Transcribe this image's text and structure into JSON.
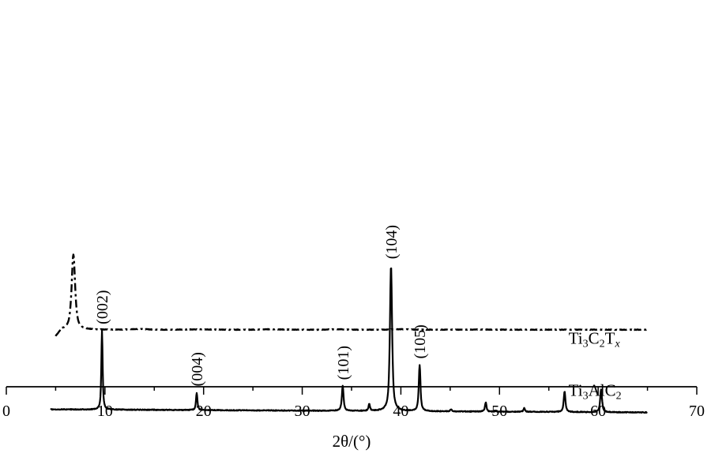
{
  "chart_data": {
    "type": "line",
    "title": "",
    "xlabel": "2θ/(°)",
    "ylabel": "",
    "xlim": [
      0,
      70
    ],
    "x_ticks": [
      0,
      10,
      20,
      30,
      40,
      50,
      60,
      70
    ],
    "grid": false,
    "y_axis_shown": false,
    "series": [
      {
        "name": "Ti3C2Tx",
        "label_parts": [
          {
            "t": "Ti",
            "s": "n"
          },
          {
            "t": "3",
            "s": "sub"
          },
          {
            "t": "C",
            "s": "n"
          },
          {
            "t": "2",
            "s": "sub"
          },
          {
            "t": "T",
            "s": "n"
          },
          {
            "t": "x",
            "s": "subi"
          }
        ],
        "line_style": "dashed",
        "label_at": [
          57,
          0.1
        ],
        "baseline": 0.78,
        "noise": 0.012,
        "broad_features": [
          {
            "center": 13.5,
            "height": 0.03,
            "width": 1.2
          },
          {
            "center": 19.5,
            "height": 0.015,
            "width": 2.0
          },
          {
            "center": 27.0,
            "height": 0.02,
            "width": 1.5
          },
          {
            "center": 33.5,
            "height": 0.02,
            "width": 1.0
          },
          {
            "center": 40.0,
            "height": 0.025,
            "width": 1.2
          },
          {
            "center": 48.0,
            "height": 0.01,
            "width": 2.0
          }
        ],
        "peaks": [
          {
            "x": 6.8,
            "height": 3.66,
            "width": 0.32,
            "label": ""
          }
        ],
        "x_range": [
          5.0,
          65.0
        ],
        "start_offset": -0.35
      },
      {
        "name": "Ti3AlC2",
        "label_parts": [
          {
            "t": "Ti",
            "s": "n"
          },
          {
            "t": "3",
            "s": "sub"
          },
          {
            "t": "AlC",
            "s": "n"
          },
          {
            "t": "2",
            "s": "sub"
          }
        ],
        "line_style": "solid",
        "label_at": [
          57,
          -2.45
        ],
        "baseline": -3.1,
        "noise": 0.02,
        "baseline_slope": -0.0025,
        "peaks": [
          {
            "x": 9.7,
            "height": 3.85,
            "width": 0.12,
            "label": "(002)"
          },
          {
            "x": 19.3,
            "height": 0.85,
            "width": 0.13,
            "label": "(004)"
          },
          {
            "x": 34.1,
            "height": 1.2,
            "width": 0.16,
            "label": "(101)"
          },
          {
            "x": 36.8,
            "height": 0.35,
            "width": 0.13,
            "label": ""
          },
          {
            "x": 39.0,
            "height": 7.1,
            "width": 0.2,
            "label": "(104)"
          },
          {
            "x": 41.9,
            "height": 2.25,
            "width": 0.16,
            "label": "(105)"
          },
          {
            "x": 45.1,
            "height": 0.1,
            "width": 0.15,
            "label": ""
          },
          {
            "x": 48.6,
            "height": 0.45,
            "width": 0.14,
            "label": ""
          },
          {
            "x": 52.5,
            "height": 0.18,
            "width": 0.14,
            "label": ""
          },
          {
            "x": 56.6,
            "height": 1.0,
            "width": 0.16,
            "label": ""
          },
          {
            "x": 60.3,
            "height": 1.12,
            "width": 0.17,
            "label": ""
          }
        ],
        "x_range": [
          4.5,
          65.0
        ]
      }
    ]
  }
}
